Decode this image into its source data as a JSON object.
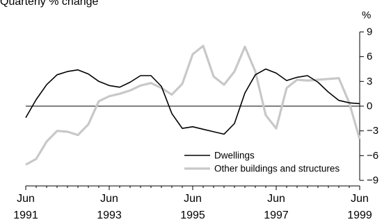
{
  "chart_data": {
    "type": "line",
    "title": "Quarterly % change",
    "ylabel": "%",
    "xlabel": "",
    "ylim": [
      -9,
      9
    ],
    "yticks": [
      9,
      6,
      3,
      0,
      -3,
      -6,
      -9
    ],
    "ytick_labels": [
      "9",
      "6",
      "3",
      "0",
      "−3",
      "−6",
      "−9"
    ],
    "x_start": "Jun 1991",
    "x_end": "Jun 1999",
    "xticks": [
      {
        "month": "Jun",
        "year": "1991"
      },
      {
        "month": "Jun",
        "year": "1993"
      },
      {
        "month": "Jun",
        "year": "1995"
      },
      {
        "month": "Jun",
        "year": "1997"
      },
      {
        "month": "Jun",
        "year": "1999"
      }
    ],
    "zero_line": true,
    "grid": false,
    "legend_position": "bottom-right",
    "series": [
      {
        "name": "Dwellings",
        "color": "#000000",
        "values": [
          -1.4,
          0.8,
          2.6,
          3.8,
          4.2,
          4.4,
          3.9,
          3.0,
          2.5,
          2.3,
          2.9,
          3.7,
          3.7,
          2.4,
          -0.9,
          -2.7,
          -2.5,
          -2.8,
          -3.1,
          -3.4,
          -2.1,
          1.6,
          3.8,
          4.5,
          4.0,
          3.1,
          3.5,
          3.7,
          2.9,
          1.7,
          0.7,
          0.4,
          0.3
        ]
      },
      {
        "name": "Other buildings and structures",
        "color": "#c8c8c8",
        "values": [
          -7.1,
          -6.4,
          -4.3,
          -3.0,
          -3.1,
          -3.5,
          -2.2,
          0.6,
          1.2,
          1.5,
          1.9,
          2.5,
          2.8,
          2.2,
          1.4,
          2.7,
          6.3,
          7.3,
          3.6,
          2.6,
          4.2,
          7.2,
          4.2,
          -1.1,
          -2.7,
          2.2,
          3.2,
          3.1,
          3.2,
          3.3,
          3.4,
          0.4,
          -4.0
        ]
      }
    ]
  }
}
